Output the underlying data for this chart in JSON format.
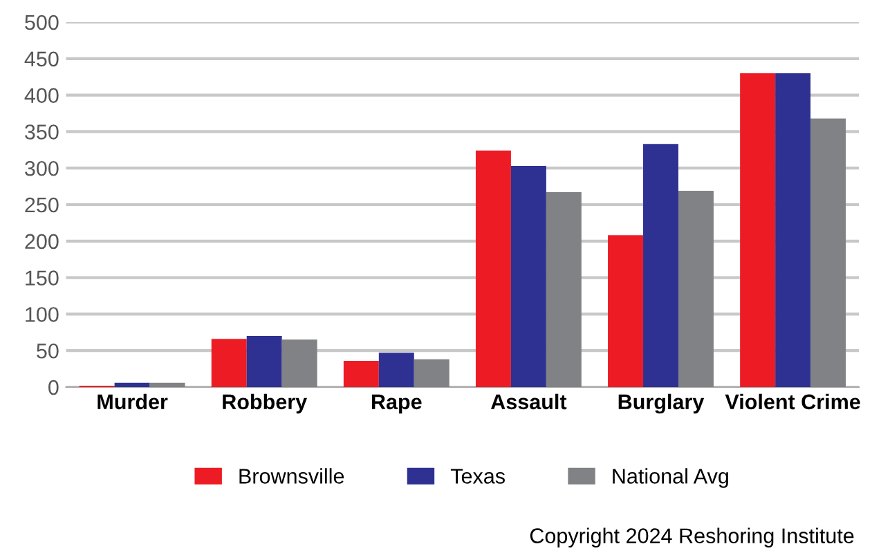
{
  "chart_data": {
    "type": "bar",
    "categories": [
      "Murder",
      "Robbery",
      "Rape",
      "Assault",
      "Burglary",
      "Violent Crime"
    ],
    "series": [
      {
        "name": "Brownsville",
        "color": "#ed1c24",
        "values": [
          2,
          66,
          36,
          324,
          208,
          430
        ]
      },
      {
        "name": "Texas",
        "color": "#2e3192",
        "values": [
          6,
          70,
          47,
          303,
          333,
          430
        ]
      },
      {
        "name": "National Avg",
        "color": "#808285",
        "values": [
          6,
          65,
          38,
          267,
          269,
          368
        ]
      }
    ],
    "ylim": [
      0,
      500
    ],
    "yticks": [
      0,
      50,
      100,
      150,
      200,
      250,
      300,
      350,
      400,
      450,
      500
    ],
    "grid": "y",
    "legend": "bottom",
    "annotations": [
      "Copyright 2024 Reshoring Institute"
    ]
  }
}
